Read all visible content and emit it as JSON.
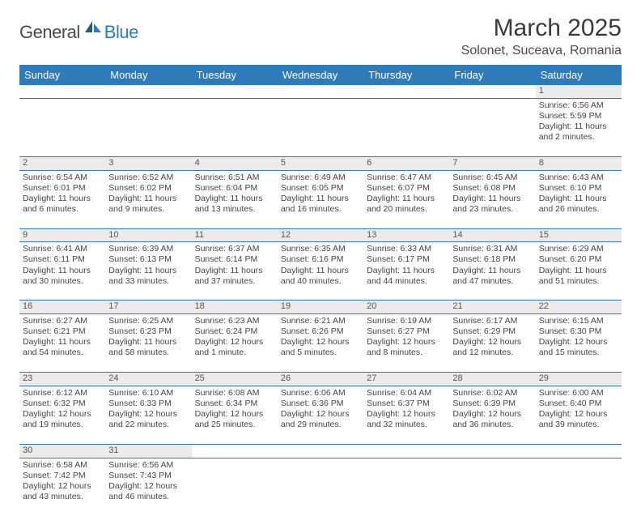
{
  "logo": {
    "part1": "General",
    "part2": "Blue"
  },
  "title": "March 2025",
  "location": "Solonet, Suceava, Romania",
  "day_headers": [
    "Sunday",
    "Monday",
    "Tuesday",
    "Wednesday",
    "Thursday",
    "Friday",
    "Saturday"
  ],
  "colors": {
    "header_bg": "#2d7bb8",
    "header_text": "#ffffff",
    "daynum_bg": "#eceaea",
    "rule": "#2d7bb8",
    "text": "#444444"
  },
  "weeks": [
    [
      null,
      null,
      null,
      null,
      null,
      null,
      {
        "n": "1",
        "sr": "Sunrise: 6:56 AM",
        "ss": "Sunset: 5:59 PM",
        "d1": "Daylight: 11 hours",
        "d2": "and 2 minutes."
      }
    ],
    [
      {
        "n": "2",
        "sr": "Sunrise: 6:54 AM",
        "ss": "Sunset: 6:01 PM",
        "d1": "Daylight: 11 hours",
        "d2": "and 6 minutes."
      },
      {
        "n": "3",
        "sr": "Sunrise: 6:52 AM",
        "ss": "Sunset: 6:02 PM",
        "d1": "Daylight: 11 hours",
        "d2": "and 9 minutes."
      },
      {
        "n": "4",
        "sr": "Sunrise: 6:51 AM",
        "ss": "Sunset: 6:04 PM",
        "d1": "Daylight: 11 hours",
        "d2": "and 13 minutes."
      },
      {
        "n": "5",
        "sr": "Sunrise: 6:49 AM",
        "ss": "Sunset: 6:05 PM",
        "d1": "Daylight: 11 hours",
        "d2": "and 16 minutes."
      },
      {
        "n": "6",
        "sr": "Sunrise: 6:47 AM",
        "ss": "Sunset: 6:07 PM",
        "d1": "Daylight: 11 hours",
        "d2": "and 20 minutes."
      },
      {
        "n": "7",
        "sr": "Sunrise: 6:45 AM",
        "ss": "Sunset: 6:08 PM",
        "d1": "Daylight: 11 hours",
        "d2": "and 23 minutes."
      },
      {
        "n": "8",
        "sr": "Sunrise: 6:43 AM",
        "ss": "Sunset: 6:10 PM",
        "d1": "Daylight: 11 hours",
        "d2": "and 26 minutes."
      }
    ],
    [
      {
        "n": "9",
        "sr": "Sunrise: 6:41 AM",
        "ss": "Sunset: 6:11 PM",
        "d1": "Daylight: 11 hours",
        "d2": "and 30 minutes."
      },
      {
        "n": "10",
        "sr": "Sunrise: 6:39 AM",
        "ss": "Sunset: 6:13 PM",
        "d1": "Daylight: 11 hours",
        "d2": "and 33 minutes."
      },
      {
        "n": "11",
        "sr": "Sunrise: 6:37 AM",
        "ss": "Sunset: 6:14 PM",
        "d1": "Daylight: 11 hours",
        "d2": "and 37 minutes."
      },
      {
        "n": "12",
        "sr": "Sunrise: 6:35 AM",
        "ss": "Sunset: 6:16 PM",
        "d1": "Daylight: 11 hours",
        "d2": "and 40 minutes."
      },
      {
        "n": "13",
        "sr": "Sunrise: 6:33 AM",
        "ss": "Sunset: 6:17 PM",
        "d1": "Daylight: 11 hours",
        "d2": "and 44 minutes."
      },
      {
        "n": "14",
        "sr": "Sunrise: 6:31 AM",
        "ss": "Sunset: 6:18 PM",
        "d1": "Daylight: 11 hours",
        "d2": "and 47 minutes."
      },
      {
        "n": "15",
        "sr": "Sunrise: 6:29 AM",
        "ss": "Sunset: 6:20 PM",
        "d1": "Daylight: 11 hours",
        "d2": "and 51 minutes."
      }
    ],
    [
      {
        "n": "16",
        "sr": "Sunrise: 6:27 AM",
        "ss": "Sunset: 6:21 PM",
        "d1": "Daylight: 11 hours",
        "d2": "and 54 minutes."
      },
      {
        "n": "17",
        "sr": "Sunrise: 6:25 AM",
        "ss": "Sunset: 6:23 PM",
        "d1": "Daylight: 11 hours",
        "d2": "and 58 minutes."
      },
      {
        "n": "18",
        "sr": "Sunrise: 6:23 AM",
        "ss": "Sunset: 6:24 PM",
        "d1": "Daylight: 12 hours",
        "d2": "and 1 minute."
      },
      {
        "n": "19",
        "sr": "Sunrise: 6:21 AM",
        "ss": "Sunset: 6:26 PM",
        "d1": "Daylight: 12 hours",
        "d2": "and 5 minutes."
      },
      {
        "n": "20",
        "sr": "Sunrise: 6:19 AM",
        "ss": "Sunset: 6:27 PM",
        "d1": "Daylight: 12 hours",
        "d2": "and 8 minutes."
      },
      {
        "n": "21",
        "sr": "Sunrise: 6:17 AM",
        "ss": "Sunset: 6:29 PM",
        "d1": "Daylight: 12 hours",
        "d2": "and 12 minutes."
      },
      {
        "n": "22",
        "sr": "Sunrise: 6:15 AM",
        "ss": "Sunset: 6:30 PM",
        "d1": "Daylight: 12 hours",
        "d2": "and 15 minutes."
      }
    ],
    [
      {
        "n": "23",
        "sr": "Sunrise: 6:12 AM",
        "ss": "Sunset: 6:32 PM",
        "d1": "Daylight: 12 hours",
        "d2": "and 19 minutes."
      },
      {
        "n": "24",
        "sr": "Sunrise: 6:10 AM",
        "ss": "Sunset: 6:33 PM",
        "d1": "Daylight: 12 hours",
        "d2": "and 22 minutes."
      },
      {
        "n": "25",
        "sr": "Sunrise: 6:08 AM",
        "ss": "Sunset: 6:34 PM",
        "d1": "Daylight: 12 hours",
        "d2": "and 25 minutes."
      },
      {
        "n": "26",
        "sr": "Sunrise: 6:06 AM",
        "ss": "Sunset: 6:36 PM",
        "d1": "Daylight: 12 hours",
        "d2": "and 29 minutes."
      },
      {
        "n": "27",
        "sr": "Sunrise: 6:04 AM",
        "ss": "Sunset: 6:37 PM",
        "d1": "Daylight: 12 hours",
        "d2": "and 32 minutes."
      },
      {
        "n": "28",
        "sr": "Sunrise: 6:02 AM",
        "ss": "Sunset: 6:39 PM",
        "d1": "Daylight: 12 hours",
        "d2": "and 36 minutes."
      },
      {
        "n": "29",
        "sr": "Sunrise: 6:00 AM",
        "ss": "Sunset: 6:40 PM",
        "d1": "Daylight: 12 hours",
        "d2": "and 39 minutes."
      }
    ],
    [
      {
        "n": "30",
        "sr": "Sunrise: 6:58 AM",
        "ss": "Sunset: 7:42 PM",
        "d1": "Daylight: 12 hours",
        "d2": "and 43 minutes."
      },
      {
        "n": "31",
        "sr": "Sunrise: 6:56 AM",
        "ss": "Sunset: 7:43 PM",
        "d1": "Daylight: 12 hours",
        "d2": "and 46 minutes."
      },
      null,
      null,
      null,
      null,
      null
    ]
  ]
}
